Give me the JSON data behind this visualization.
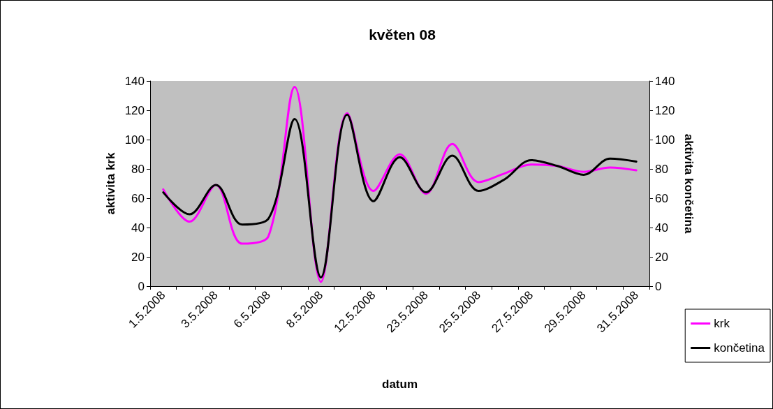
{
  "chart_data": {
    "type": "line",
    "title": "květen 08",
    "xlabel": "datum",
    "ylabel": "aktivita krk",
    "y2label": "aktivita končetina",
    "categories": [
      "1.5.2008",
      null,
      "3.5.2008",
      null,
      "6.5.2008",
      null,
      "8.5.2008",
      null,
      "12.5.2008",
      null,
      "23.5.2008",
      null,
      "25.5.2008",
      null,
      "27.5.2008",
      null,
      "29.5.2008",
      null,
      "31.5.2008"
    ],
    "series": [
      {
        "name": "krk",
        "color": "#ff00ff",
        "values": [
          66,
          44,
          69,
          29,
          34,
          136,
          3,
          118,
          65,
          90,
          63,
          97,
          71,
          77,
          83,
          82,
          78,
          81,
          79
        ]
      },
      {
        "name": "končetina",
        "color": "#000000",
        "axis": "y2",
        "values": [
          64,
          49,
          69,
          42,
          46,
          114,
          6,
          117,
          58,
          88,
          64,
          89,
          65,
          73,
          86,
          82,
          76,
          87,
          85
        ]
      }
    ],
    "ylim": [
      0,
      140
    ],
    "yticks": [
      0,
      20,
      40,
      60,
      80,
      100,
      120,
      140
    ],
    "y2lim": [
      0,
      140
    ],
    "y2ticks": [
      0,
      20,
      40,
      60,
      80,
      100,
      120,
      140
    ],
    "grid": false,
    "legend": "right",
    "marker": "none",
    "line_style": "solid"
  }
}
